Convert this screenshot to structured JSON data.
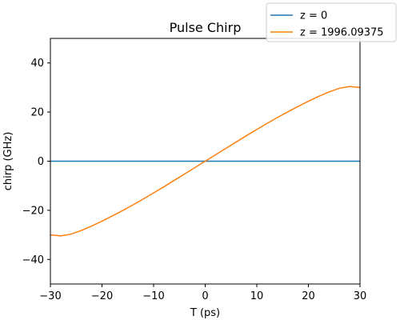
{
  "chart_data": {
    "type": "line",
    "title": "Pulse Chirp",
    "xlabel": "T (ps)",
    "ylabel": "chirp (GHz)",
    "xlim": [
      -30,
      30
    ],
    "ylim": [
      -50,
      50
    ],
    "xticks": [
      -30,
      -20,
      -10,
      0,
      10,
      20,
      30
    ],
    "xtick_labels": [
      "−30",
      "−20",
      "−10",
      "0",
      "10",
      "20",
      "30"
    ],
    "yticks": [
      -40,
      -20,
      0,
      20,
      40
    ],
    "ytick_labels": [
      "−40",
      "−20",
      "0",
      "20",
      "40"
    ],
    "grid": false,
    "legend_position": "top-right",
    "series": [
      {
        "name": "z = 0",
        "color": "#1f77b4",
        "x": [
          -30,
          30
        ],
        "y": [
          0,
          0
        ]
      },
      {
        "name": "z = 1996.09375",
        "color": "#ff7f0e",
        "x": [
          -30,
          -28,
          -26,
          -24,
          -22,
          -20,
          -18,
          -16,
          -14,
          -12,
          -10,
          -8,
          -6,
          -4,
          -2,
          0,
          2,
          4,
          6,
          8,
          10,
          12,
          14,
          16,
          18,
          20,
          22,
          24,
          26,
          28,
          30
        ],
        "y": [
          -30.0,
          -30.4,
          -29.7,
          -28.2,
          -26.4,
          -24.4,
          -22.3,
          -20.1,
          -17.8,
          -15.4,
          -12.9,
          -10.4,
          -7.8,
          -5.2,
          -2.6,
          0.0,
          2.6,
          5.2,
          7.8,
          10.4,
          12.9,
          15.4,
          17.8,
          20.1,
          22.3,
          24.4,
          26.4,
          28.2,
          29.7,
          30.4,
          30.0
        ]
      }
    ]
  }
}
